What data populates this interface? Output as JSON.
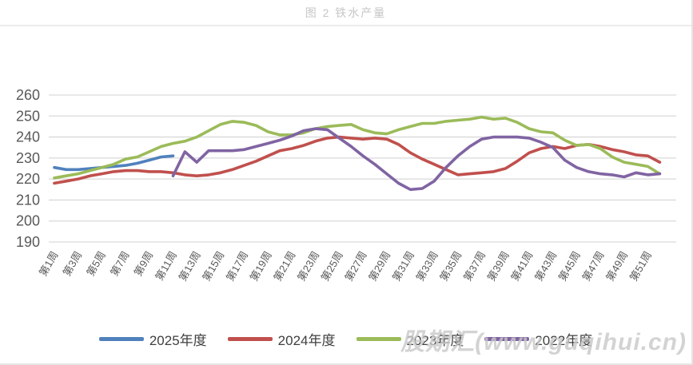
{
  "page": {
    "title": "图 2 铁水产量",
    "watermark": "股期汇(www.guqihui.cn)"
  },
  "chart_data": {
    "type": "line",
    "title": "图 2 铁水产量",
    "xlabel": "",
    "ylabel": "",
    "ylim": [
      190,
      260
    ],
    "y_ticks": [
      190,
      200,
      210,
      220,
      230,
      240,
      250,
      260
    ],
    "grid": "horizontal",
    "legend_position": "bottom",
    "weeks_total": 52,
    "x_tick_labels": [
      "第1周",
      "第3周",
      "第5周",
      "第7周",
      "第9周",
      "第11周",
      "第13周",
      "第15周",
      "第17周",
      "第19周",
      "第21周",
      "第23周",
      "第25周",
      "第27周",
      "第29周",
      "第31周",
      "第33周",
      "第35周",
      "第37周",
      "第39周",
      "第41周",
      "第43周",
      "第45周",
      "第47周",
      "第49周",
      "第51周"
    ],
    "series": [
      {
        "name": "2025年度",
        "color": "#4F81BD",
        "values": [
          225.5,
          224.5,
          224.5,
          225,
          225.5,
          226,
          226.5,
          227.5,
          229,
          230.5,
          231,
          null,
          null,
          null,
          null,
          null,
          null,
          null,
          null,
          null,
          null,
          null,
          null,
          null,
          null,
          null,
          null,
          null,
          null,
          null,
          null,
          null,
          null,
          null,
          null,
          null,
          null,
          null,
          null,
          null,
          null,
          null,
          null,
          null,
          null,
          null,
          null,
          null,
          null,
          null,
          null,
          null
        ]
      },
      {
        "name": "2024年度",
        "color": "#C0504D",
        "values": [
          218,
          219,
          220,
          221.5,
          222.5,
          223.5,
          224,
          224,
          223.5,
          223.5,
          223,
          222,
          221.5,
          222,
          223,
          224.5,
          226.5,
          228.5,
          231,
          233.5,
          234.5,
          236,
          238,
          239.5,
          240,
          239.5,
          239,
          239.5,
          239,
          236.5,
          232.5,
          229.5,
          227,
          224.5,
          222,
          222.5,
          223,
          223.5,
          225,
          228.5,
          232.5,
          234.5,
          235.5,
          234.5,
          236,
          236.5,
          235.5,
          234,
          233,
          231.5,
          231,
          228
        ]
      },
      {
        "name": "2023年度",
        "color": "#9BBB59",
        "values": [
          220.5,
          221.5,
          222.5,
          224,
          225.5,
          227,
          229.5,
          230.5,
          233,
          235.5,
          237,
          238,
          240,
          243,
          246,
          247.5,
          247,
          245.5,
          242.5,
          241,
          241,
          242,
          244,
          245,
          245.5,
          246,
          243.5,
          242,
          241.5,
          243.5,
          245,
          246.5,
          246.5,
          247.5,
          248,
          248.5,
          249.5,
          248.5,
          249,
          247,
          244,
          242.5,
          242,
          238.5,
          236,
          236.5,
          234.5,
          230.5,
          228,
          227,
          226,
          222.5
        ]
      },
      {
        "name": "2022年度",
        "color": "#8064A2",
        "values": [
          null,
          null,
          null,
          null,
          null,
          null,
          null,
          null,
          null,
          null,
          221.5,
          233,
          228,
          233.5,
          233.5,
          233.5,
          234,
          235.5,
          237,
          238.5,
          240.5,
          243,
          244,
          243.5,
          239.5,
          235.5,
          231,
          227,
          222.5,
          218,
          215,
          215.5,
          219,
          225.5,
          231,
          235.5,
          239,
          240,
          240,
          240,
          239.5,
          237.5,
          235,
          229,
          225.5,
          223.5,
          222.5,
          222,
          221,
          223,
          222,
          222.5
        ]
      }
    ]
  }
}
